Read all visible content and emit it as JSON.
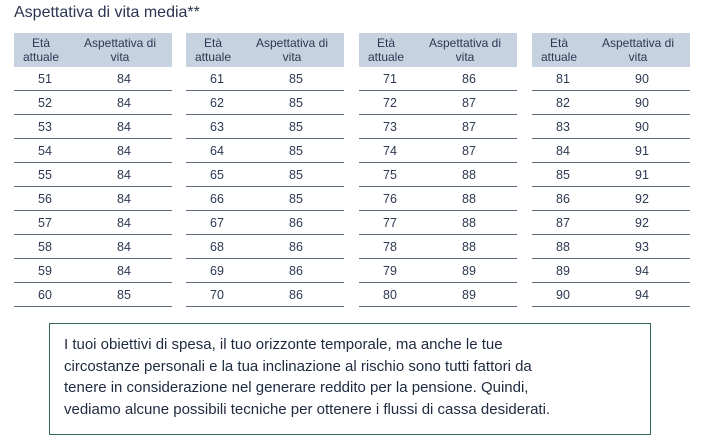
{
  "title": "Aspettativa di vita media**",
  "header": {
    "age_line1": "Età",
    "age_line2": "attuale",
    "exp_line1": "Aspettativa di",
    "exp_line2": "vita"
  },
  "tables": [
    {
      "rows": [
        [
          "51",
          "84"
        ],
        [
          "52",
          "84"
        ],
        [
          "53",
          "84"
        ],
        [
          "54",
          "84"
        ],
        [
          "55",
          "84"
        ],
        [
          "56",
          "84"
        ],
        [
          "57",
          "84"
        ],
        [
          "58",
          "84"
        ],
        [
          "59",
          "84"
        ],
        [
          "60",
          "85"
        ]
      ]
    },
    {
      "rows": [
        [
          "61",
          "85"
        ],
        [
          "62",
          "85"
        ],
        [
          "63",
          "85"
        ],
        [
          "64",
          "85"
        ],
        [
          "65",
          "85"
        ],
        [
          "66",
          "85"
        ],
        [
          "67",
          "86"
        ],
        [
          "68",
          "86"
        ],
        [
          "69",
          "86"
        ],
        [
          "70",
          "86"
        ]
      ]
    },
    {
      "rows": [
        [
          "71",
          "86"
        ],
        [
          "72",
          "87"
        ],
        [
          "73",
          "87"
        ],
        [
          "74",
          "87"
        ],
        [
          "75",
          "88"
        ],
        [
          "76",
          "88"
        ],
        [
          "77",
          "88"
        ],
        [
          "78",
          "88"
        ],
        [
          "79",
          "89"
        ],
        [
          "80",
          "89"
        ]
      ]
    },
    {
      "rows": [
        [
          "81",
          "90"
        ],
        [
          "82",
          "90"
        ],
        [
          "83",
          "90"
        ],
        [
          "84",
          "91"
        ],
        [
          "85",
          "91"
        ],
        [
          "86",
          "92"
        ],
        [
          "87",
          "92"
        ],
        [
          "88",
          "93"
        ],
        [
          "89",
          "94"
        ],
        [
          "90",
          "94"
        ]
      ]
    }
  ],
  "note": {
    "lines": [
      "I tuoi obiettivi di spesa, il tuo orizzonte temporale, ma anche le tue",
      "circostanze personali e la tua inclinazione al rischio sono tutti fattori da",
      "tenere in considerazione nel generare reddito per la pensione. Quindi,",
      "vediamo alcune possibili tecniche per ottenere i flussi di cassa desiderati."
    ]
  },
  "colors": {
    "header_bg": "#c7d2e0",
    "rule": "#5d6a80",
    "note_border": "#356b54",
    "text": "#2c3852"
  }
}
